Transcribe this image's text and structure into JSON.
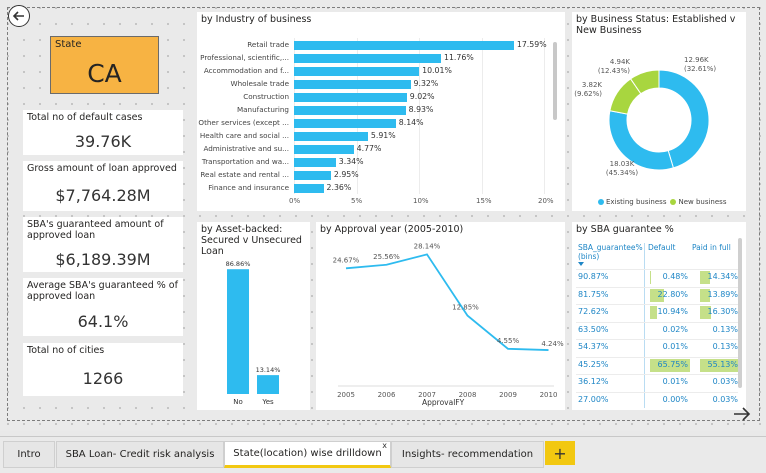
{
  "state_card": {
    "label": "State",
    "value": "CA"
  },
  "kpis": [
    {
      "label": "Total no of default cases",
      "value": "39.76K"
    },
    {
      "label": "Gross amount of loan approved",
      "value": "$7,764.28M"
    },
    {
      "label": "SBA's guaranteed amount of approved loan",
      "value": "$6,189.39M"
    },
    {
      "label": "Average SBA's guaranteed % of approved loan",
      "value": "64.1%"
    },
    {
      "label": "Total no of cities",
      "value": "1266"
    }
  ],
  "industry": {
    "title": "by Industry of business",
    "ticks": [
      "0%",
      "5%",
      "10%",
      "15%",
      "20%"
    ]
  },
  "status": {
    "title": "by Business Status: Established v New Business",
    "legend_existing": "Existing business",
    "legend_new": "New business"
  },
  "asset": {
    "title": "by Asset-backed: Secured v Unsecured Loan"
  },
  "approval": {
    "title": "by Approval year (2005-2010)",
    "xlabel": "ApprovalFY"
  },
  "guarantee": {
    "title": "by SBA guarantee %",
    "col_bins": "SBA_guarantee% (bins)",
    "col_default": "Default",
    "col_paid": "Paid in full",
    "rows": [
      {
        "bin": "90.87%",
        "default": "0.48%",
        "paid": "14.34%",
        "default_frac": 0.007,
        "paid_frac": 0.26
      },
      {
        "bin": "81.75%",
        "default": "22.80%",
        "paid": "13.89%",
        "default_frac": 0.35,
        "paid_frac": 0.25
      },
      {
        "bin": "72.62%",
        "default": "10.94%",
        "paid": "16.30%",
        "default_frac": 0.17,
        "paid_frac": 0.3
      },
      {
        "bin": "63.50%",
        "default": "0.02%",
        "paid": "0.13%",
        "default_frac": 0,
        "paid_frac": 0
      },
      {
        "bin": "54.37%",
        "default": "0.01%",
        "paid": "0.13%",
        "default_frac": 0,
        "paid_frac": 0
      },
      {
        "bin": "45.25%",
        "default": "65.75%",
        "paid": "55.13%",
        "default_frac": 1.0,
        "paid_frac": 1.0
      },
      {
        "bin": "36.12%",
        "default": "0.01%",
        "paid": "0.03%",
        "default_frac": 0,
        "paid_frac": 0
      },
      {
        "bin": "27.00%",
        "default": "0.00%",
        "paid": "0.03%",
        "default_frac": 0,
        "paid_frac": 0
      }
    ]
  },
  "tabs": {
    "t1": "Intro",
    "t2": "SBA Loan- Credit risk analysis",
    "t3": "State(location) wise drilldown",
    "t4": "Insights- recommendation",
    "close": "x",
    "add": "+"
  },
  "colors": {
    "blue": "#2ebbef",
    "green": "#a8d63f",
    "yellow": "#f2c811",
    "state": "#f7b343"
  },
  "chart_data": [
    {
      "type": "bar",
      "title": "by Industry of business",
      "orientation": "horizontal",
      "categories": [
        "Retail trade",
        "Professional, scientific,...",
        "Accommodation and f...",
        "Wholesale trade",
        "Construction",
        "Manufacturing",
        "Other services (except ...",
        "Health care and social ...",
        "Administrative and su...",
        "Transportation and wa...",
        "Real estate and rental ...",
        "Finance and insurance"
      ],
      "values": [
        17.59,
        11.76,
        10.01,
        9.32,
        9.02,
        8.93,
        8.14,
        5.91,
        4.77,
        3.34,
        2.95,
        2.36
      ],
      "labels": [
        "17.59%",
        "11.76%",
        "10.01%",
        "9.32%",
        "9.02%",
        "8.93%",
        "8.14%",
        "5.91%",
        "4.77%",
        "3.34%",
        "2.95%",
        "2.36%"
      ],
      "xlim": [
        0,
        20
      ]
    },
    {
      "type": "pie",
      "title": "by Business Status: Established v New Business",
      "categories": [
        "Existing business",
        "New business"
      ],
      "slices": [
        {
          "name": "Existing business",
          "value": 18.03,
          "label_a": "18.03K",
          "label_b": "(45.34%)"
        },
        {
          "name": "Existing business",
          "value": 12.96,
          "label_a": "12.96K",
          "label_b": "(32.61%)"
        },
        {
          "name": "New business",
          "value": 4.94,
          "label_a": "4.94K",
          "label_b": "(12.43%)"
        },
        {
          "name": "New business",
          "value": 3.82,
          "label_a": "3.82K",
          "label_b": "(9.62%)"
        }
      ]
    },
    {
      "type": "bar",
      "title": "by Asset-backed: Secured v Unsecured Loan",
      "categories": [
        "No",
        "Yes"
      ],
      "values": [
        86.86,
        13.14
      ],
      "labels": [
        "86.86%",
        "13.14%"
      ],
      "ylim": [
        0,
        100
      ]
    },
    {
      "type": "line",
      "title": "by Approval year (2005-2010)",
      "x": [
        2005,
        2006,
        2007,
        2008,
        2009,
        2010
      ],
      "xticks": [
        "2005",
        "2006",
        "2007",
        "2008",
        "2009",
        "2010"
      ],
      "values": [
        24.67,
        25.56,
        28.14,
        12.85,
        4.55,
        4.24
      ],
      "labels": [
        "24.67%",
        "25.56%",
        "28.14%",
        "12.85%",
        "4.55%",
        "4.24%"
      ],
      "xlabel": "ApprovalFY",
      "ylim": [
        0,
        30
      ]
    }
  ]
}
